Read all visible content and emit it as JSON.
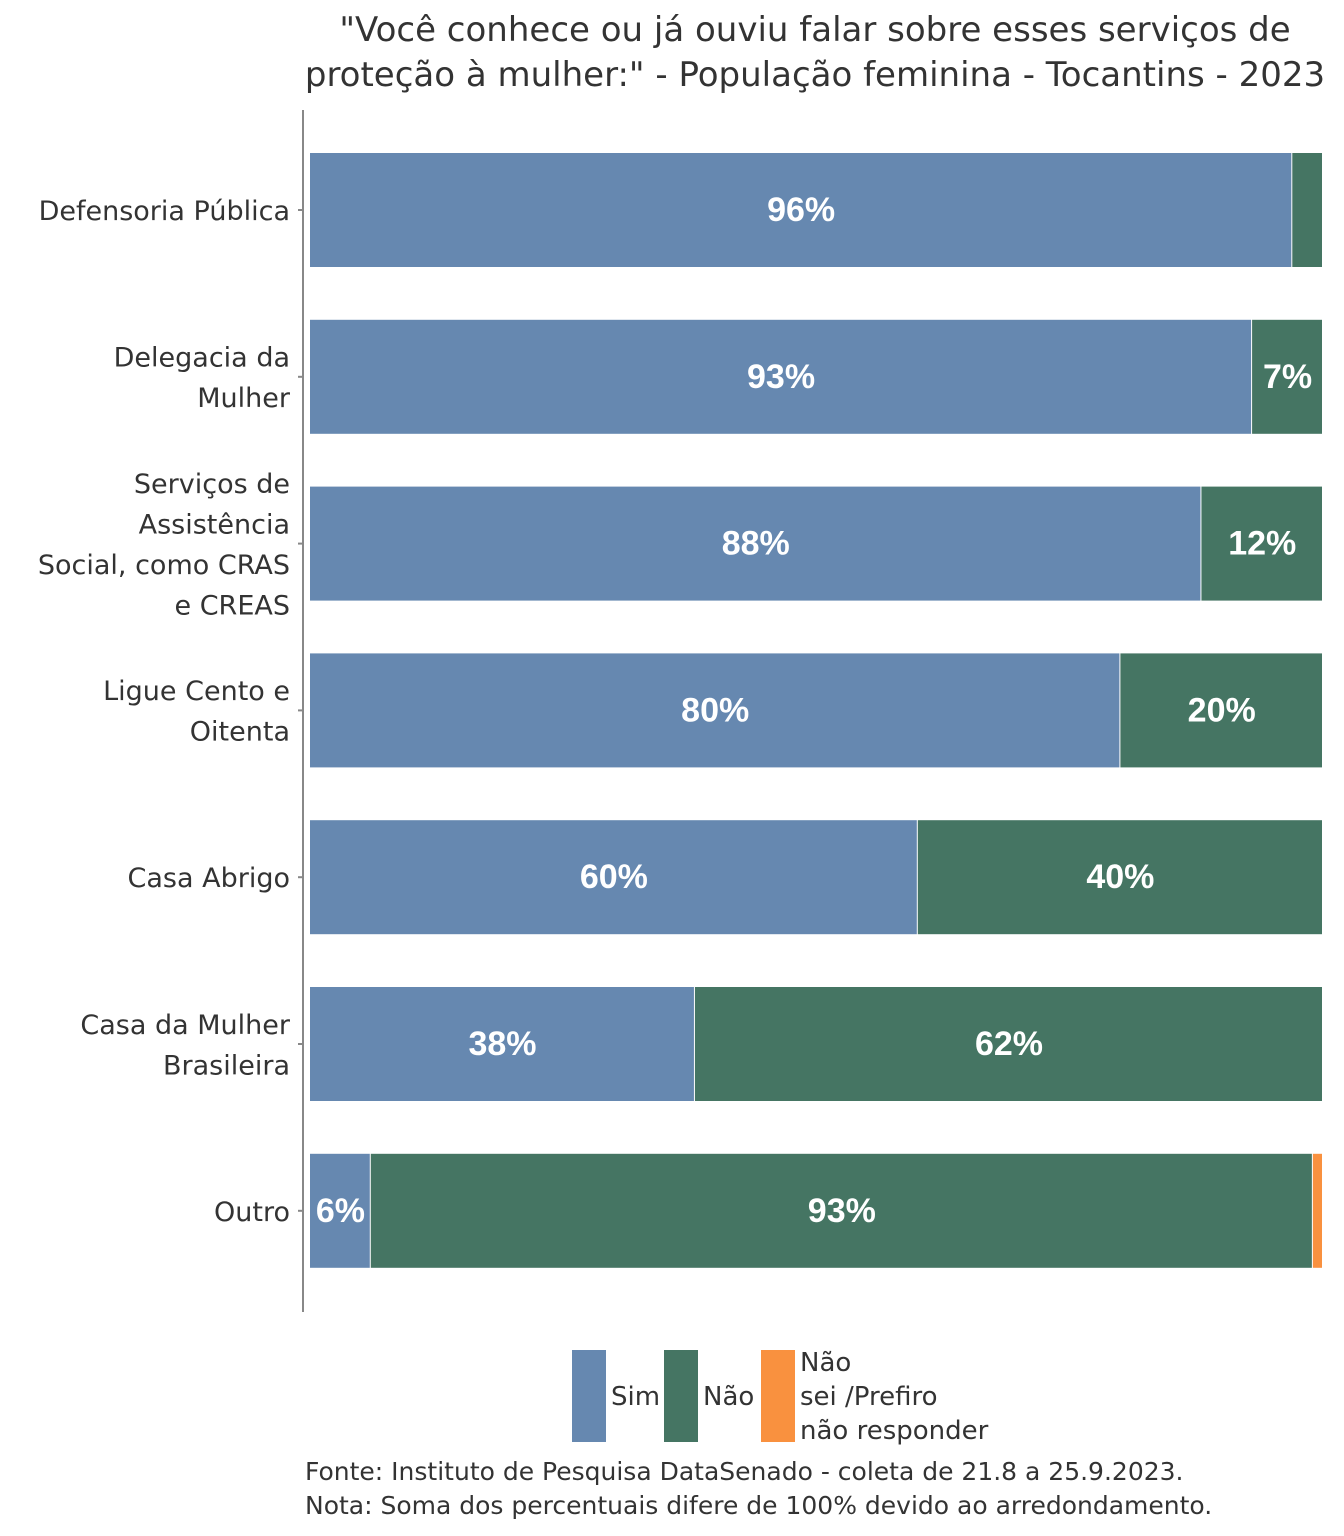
{
  "chart_data": {
    "type": "bar",
    "orientation": "horizontal",
    "stacked": true,
    "title": "\"Você conhece ou já ouviu falar sobre esses serviços de proteção à mulher:\" - População feminina - Tocantins - 2023",
    "title_lines": [
      "\"Você conhece ou já ouviu falar sobre esses serviços de",
      "proteção à mulher:\" - População feminina - Tocantins - 2023"
    ],
    "categories": [
      "Defensoria Pública",
      "Delegacia da Mulher",
      "Serviços de Assistência Social, como CRAS e CREAS",
      "Ligue Cento e Oitenta",
      "Casa Abrigo",
      "Casa da Mulher Brasileira",
      "Outro"
    ],
    "category_lines": [
      [
        "Defensoria Pública"
      ],
      [
        "Delegacia da",
        "Mulher"
      ],
      [
        "Serviços de",
        "Assistência",
        "Social, como CRAS",
        "e CREAS"
      ],
      [
        "Ligue Cento e",
        "Oitenta"
      ],
      [
        "Casa Abrigo"
      ],
      [
        "Casa da Mulher",
        "Brasileira"
      ],
      [
        "Outro"
      ]
    ],
    "series": [
      {
        "name": "Sim",
        "color": "#6688b0",
        "values": [
          96,
          93,
          88,
          80,
          60,
          38,
          6
        ],
        "labels": [
          "96%",
          "93%",
          "88%",
          "80%",
          "60%",
          "38%",
          "6%"
        ]
      },
      {
        "name": "Não",
        "color": "#457563",
        "values": [
          3,
          7,
          12,
          20,
          40,
          62,
          93
        ],
        "labels": [
          "",
          "7%",
          "12%",
          "20%",
          "40%",
          "62%",
          "93%"
        ]
      },
      {
        "name": "Não sei /Prefiro não responder",
        "color": "#f9913f",
        "values": [
          0,
          0,
          0,
          0,
          0,
          0,
          1
        ],
        "labels": [
          "",
          "",
          "",
          "",
          "",
          "",
          ""
        ]
      }
    ],
    "xlim": [
      0,
      100
    ],
    "grid": false,
    "legend_position": "bottom"
  },
  "legend": {
    "items": [
      {
        "lines": [
          "Sim"
        ]
      },
      {
        "lines": [
          "Não"
        ]
      },
      {
        "lines": [
          "Não",
          "sei /Prefiro",
          "não responder"
        ]
      }
    ]
  },
  "footer": {
    "source": "Fonte: Instituto de Pesquisa DataSenado - coleta de 21.8 a 25.9.2023.",
    "note": "Nota: Soma dos percentuais difere de 100% devido ao arredondamento."
  }
}
